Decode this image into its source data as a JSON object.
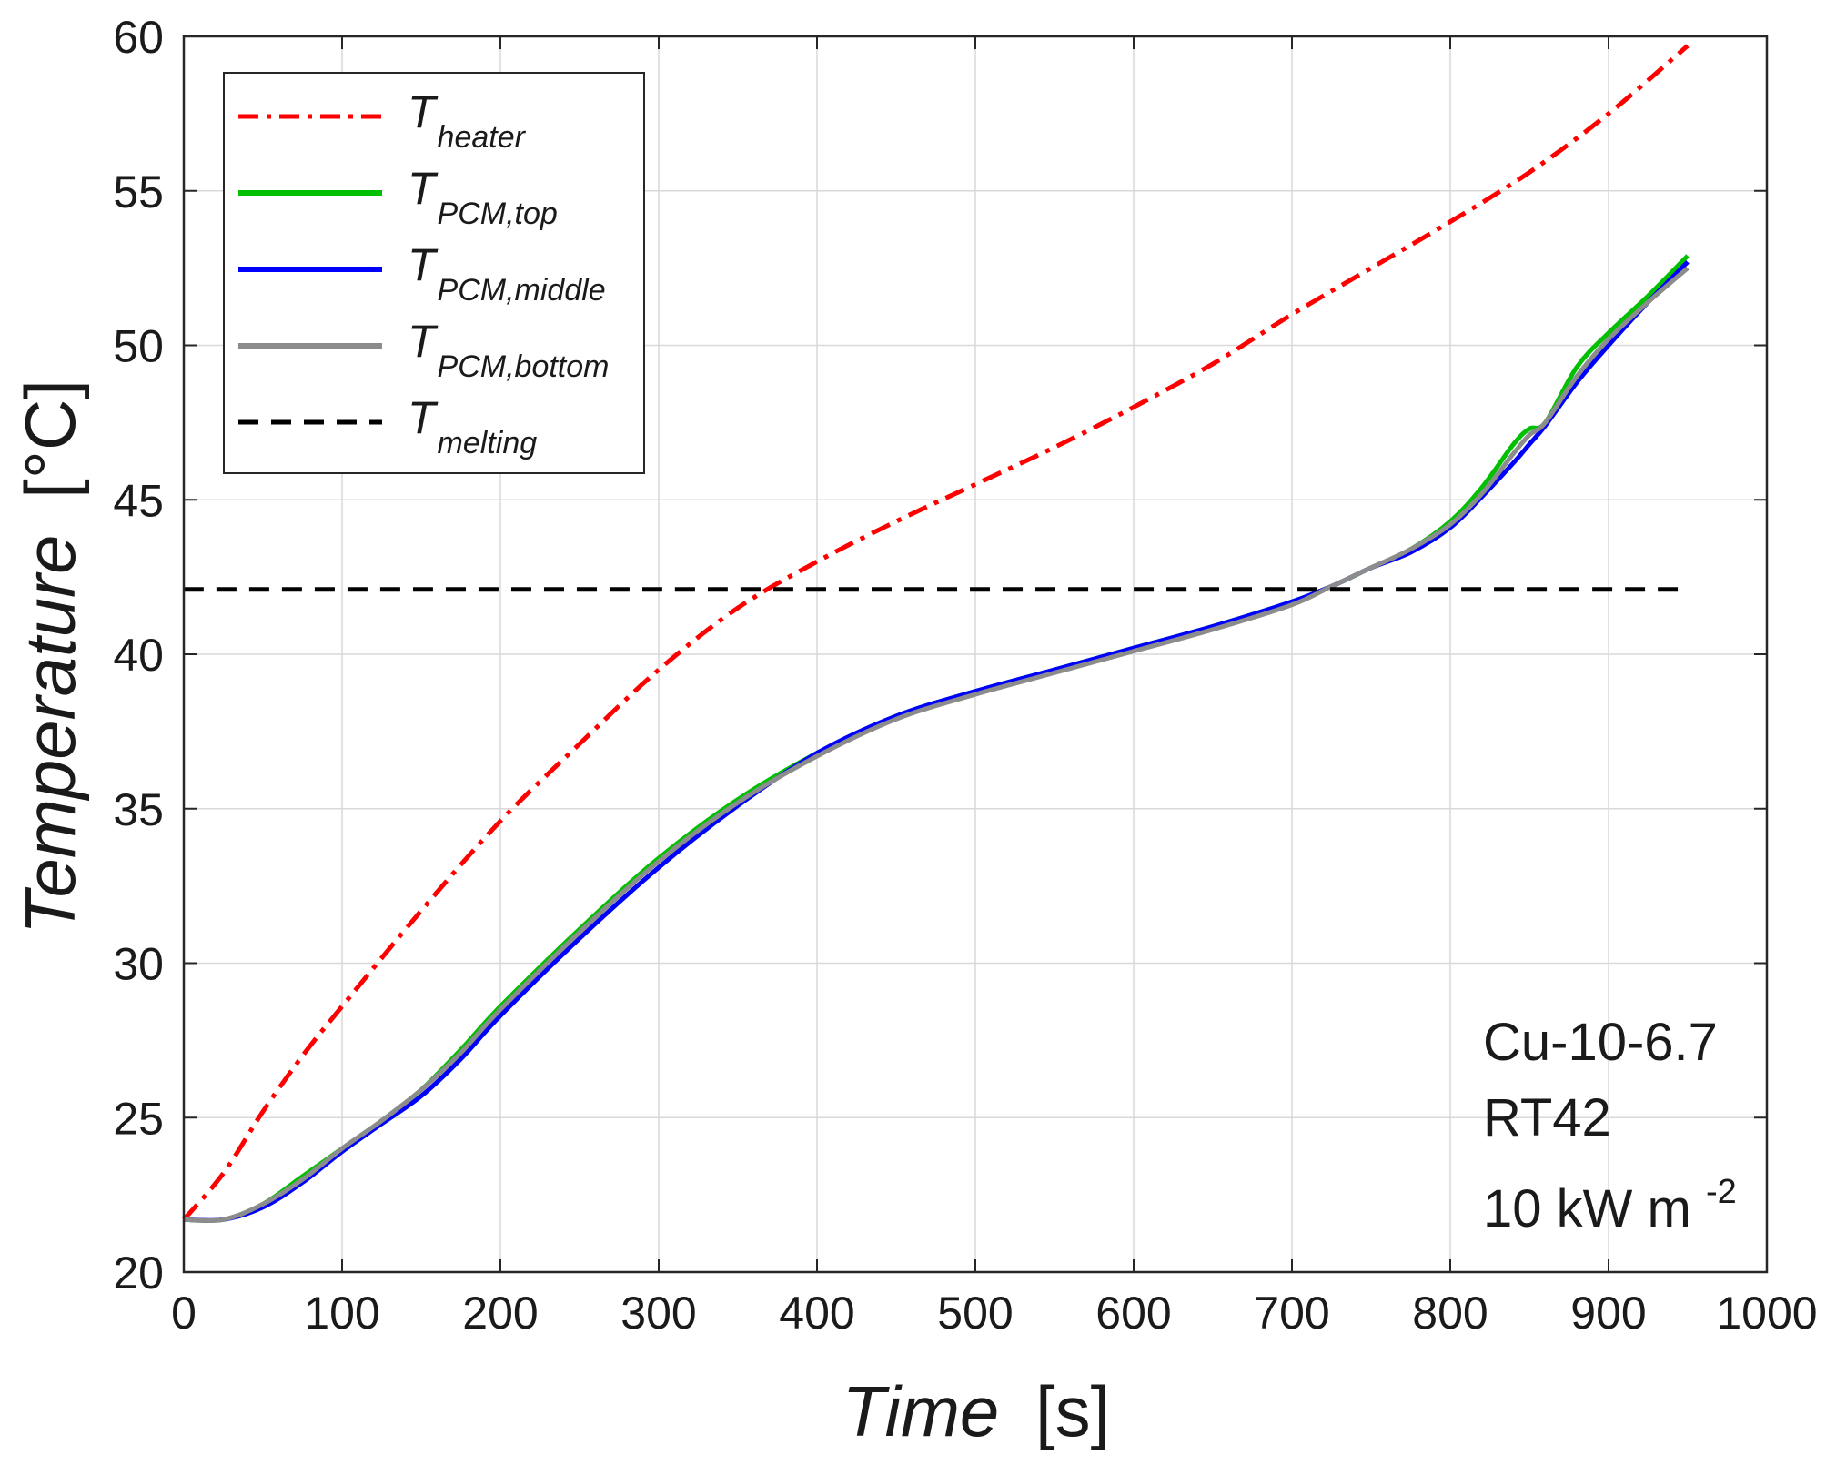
{
  "chart_data": {
    "type": "line",
    "title": "",
    "xlabel": {
      "main": "Time",
      "unit": "[s]"
    },
    "ylabel": {
      "main": "Temperature",
      "unit": "[°C]"
    },
    "xlim": [
      0,
      1000
    ],
    "ylim": [
      20,
      60
    ],
    "xticks": [
      0,
      100,
      200,
      300,
      400,
      500,
      600,
      700,
      800,
      900,
      1000
    ],
    "yticks": [
      20,
      25,
      30,
      35,
      40,
      45,
      50,
      55,
      60
    ],
    "xtick_labels": [
      "0",
      "100",
      "200",
      "300",
      "400",
      "500",
      "600",
      "700",
      "800",
      "900",
      "1000"
    ],
    "ytick_labels": [
      "20",
      "25",
      "30",
      "35",
      "40",
      "45",
      "50",
      "55",
      "60"
    ],
    "grid": true,
    "legend_position": "top-left",
    "series": [
      {
        "name": "T_heater",
        "legend_main": "T",
        "legend_sub": "heater",
        "color": "#ff0000",
        "style": "dash-dot",
        "x": [
          0,
          25,
          50,
          75,
          100,
          150,
          200,
          250,
          300,
          350,
          400,
          450,
          500,
          550,
          600,
          650,
          700,
          750,
          800,
          850,
          900,
          950
        ],
        "y": [
          21.7,
          23.2,
          25.2,
          27.0,
          28.6,
          31.7,
          34.6,
          37.1,
          39.5,
          41.5,
          43.0,
          44.3,
          45.5,
          46.7,
          48.0,
          49.4,
          51.0,
          52.5,
          54.0,
          55.6,
          57.5,
          59.7
        ]
      },
      {
        "name": "T_PCM,top",
        "legend_main": "T",
        "legend_sub": "PCM,top",
        "color": "#00c000",
        "style": "solid",
        "x": [
          0,
          25,
          50,
          75,
          100,
          125,
          150,
          175,
          200,
          250,
          300,
          350,
          400,
          450,
          500,
          550,
          600,
          650,
          700,
          725,
          750,
          775,
          800,
          820,
          840,
          850,
          860,
          880,
          900,
          925,
          950
        ],
        "y": [
          21.7,
          21.7,
          22.2,
          23.1,
          24.0,
          24.9,
          25.9,
          27.2,
          28.6,
          31.1,
          33.4,
          35.3,
          36.8,
          38.0,
          38.8,
          39.5,
          40.2,
          40.9,
          41.7,
          42.2,
          42.8,
          43.4,
          44.3,
          45.4,
          46.8,
          47.3,
          47.5,
          49.3,
          50.4,
          51.6,
          52.9
        ]
      },
      {
        "name": "T_PCM,middle",
        "legend_main": "T",
        "legend_sub": "PCM,middle",
        "color": "#0000ff",
        "style": "solid",
        "x": [
          0,
          25,
          50,
          75,
          100,
          125,
          150,
          175,
          200,
          250,
          300,
          350,
          400,
          450,
          500,
          550,
          600,
          650,
          700,
          725,
          750,
          775,
          800,
          820,
          840,
          850,
          860,
          880,
          900,
          925,
          950
        ],
        "y": [
          21.7,
          21.7,
          22.1,
          22.9,
          23.9,
          24.8,
          25.7,
          26.9,
          28.3,
          30.8,
          33.1,
          35.1,
          36.8,
          38.0,
          38.8,
          39.5,
          40.2,
          40.9,
          41.7,
          42.2,
          42.8,
          43.3,
          44.1,
          45.1,
          46.2,
          46.8,
          47.4,
          48.8,
          50.0,
          51.4,
          52.7
        ]
      },
      {
        "name": "T_PCM,bottom",
        "legend_main": "T",
        "legend_sub": "PCM,bottom",
        "color": "#8c8c8c",
        "style": "solid",
        "x": [
          0,
          25,
          50,
          75,
          100,
          125,
          150,
          175,
          200,
          250,
          300,
          350,
          400,
          450,
          500,
          550,
          600,
          650,
          700,
          725,
          750,
          775,
          800,
          820,
          840,
          850,
          860,
          880,
          900,
          925,
          950
        ],
        "y": [
          21.7,
          21.7,
          22.2,
          23.0,
          24.0,
          24.9,
          25.9,
          27.1,
          28.5,
          31.0,
          33.3,
          35.2,
          36.7,
          37.9,
          38.7,
          39.4,
          40.1,
          40.8,
          41.6,
          42.2,
          42.8,
          43.4,
          44.2,
          45.2,
          46.5,
          47.1,
          47.5,
          49.0,
          50.2,
          51.4,
          52.5
        ]
      },
      {
        "name": "T_melting",
        "legend_main": "T",
        "legend_sub": "melting",
        "color": "#000000",
        "style": "dashed",
        "x": [
          0,
          950
        ],
        "y": [
          42.1,
          42.1
        ]
      }
    ],
    "annotations": [
      "Cu-10-6.7",
      "RT42",
      "10 kW m",
      "-2"
    ]
  }
}
